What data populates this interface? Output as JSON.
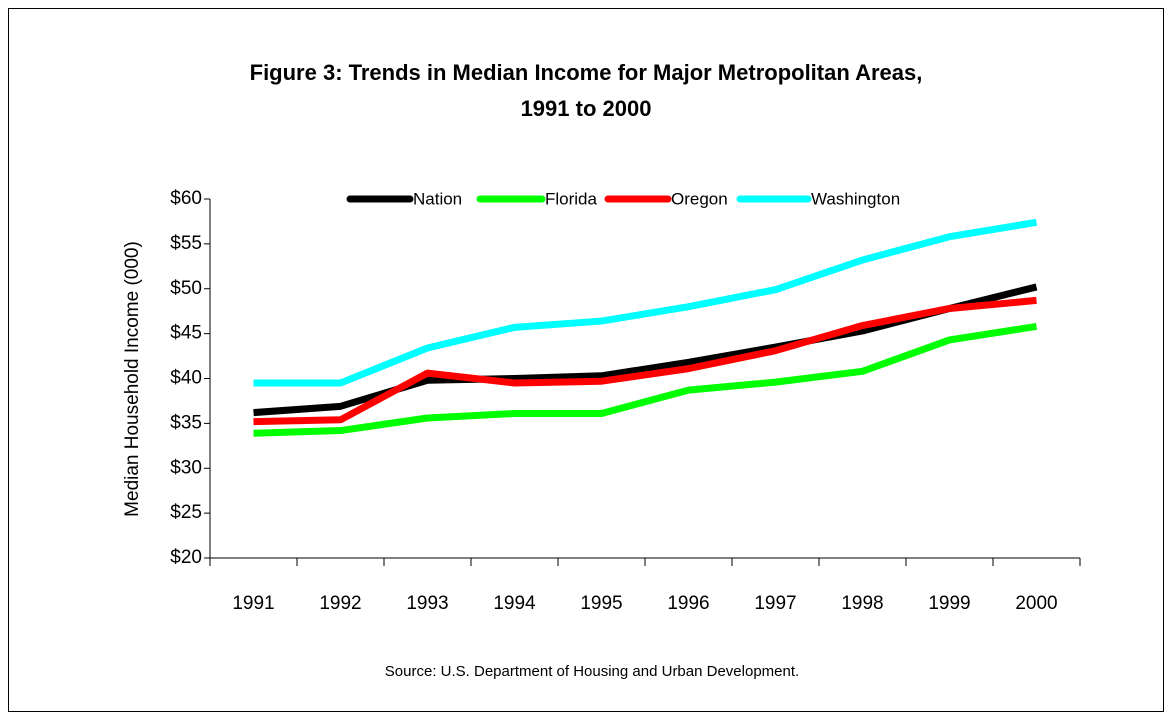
{
  "chart_data": {
    "type": "line",
    "title_lines": [
      "Figure 3: Trends in Median Income for Major Metropolitan Areas,",
      "1991 to 2000"
    ],
    "y_label": "Median Household Income (000)",
    "source": "Source: U.S. Department of Housing and Urban Development.",
    "categories": [
      "1991",
      "1992",
      "1993",
      "1994",
      "1995",
      "1996",
      "1997",
      "1998",
      "1999",
      "2000"
    ],
    "series": [
      {
        "name": "Nation",
        "color": "#000000",
        "values": [
          36.2,
          36.9,
          39.8,
          40.0,
          40.3,
          41.8,
          43.5,
          45.3,
          47.8,
          50.2
        ]
      },
      {
        "name": "Florida",
        "color": "#00ff00",
        "values": [
          33.9,
          34.2,
          35.6,
          36.1,
          36.1,
          38.7,
          39.6,
          40.8,
          44.3,
          45.8
        ]
      },
      {
        "name": "Oregon",
        "color": "#ff0000",
        "values": [
          35.2,
          35.4,
          40.6,
          39.5,
          39.7,
          41.1,
          43.1,
          45.9,
          47.8,
          48.7
        ]
      },
      {
        "name": "Washington",
        "color": "#00ffff",
        "values": [
          39.5,
          39.5,
          43.4,
          45.7,
          46.4,
          48.0,
          49.9,
          53.2,
          55.8,
          57.4
        ]
      }
    ],
    "ylim": [
      20,
      60
    ],
    "yticks": [
      {
        "value": 20,
        "label": "$20"
      },
      {
        "value": 25,
        "label": "$25"
      },
      {
        "value": 30,
        "label": "$30"
      },
      {
        "value": 35,
        "label": "$35"
      },
      {
        "value": 40,
        "label": "$40"
      },
      {
        "value": 45,
        "label": "$45"
      },
      {
        "value": 50,
        "label": "$50"
      },
      {
        "value": 55,
        "label": "$55"
      },
      {
        "value": 60,
        "label": "$60"
      }
    ],
    "legend": "top"
  }
}
